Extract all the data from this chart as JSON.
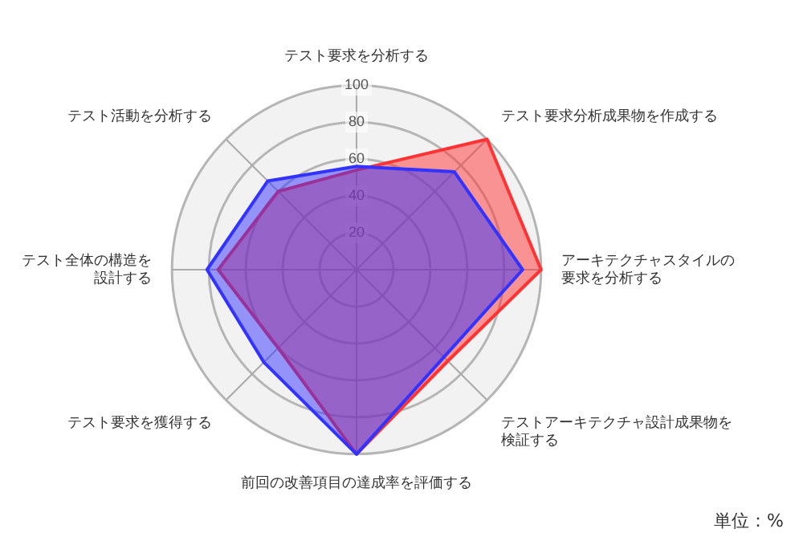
{
  "chart_data": {
    "type": "radar",
    "categories": [
      "テスト要求を分析する",
      "テスト要求分析成果物を作成する",
      "アーキテクチャスタイルの要求を分析する",
      "テストアーキテクチャ設計成果物を検証する",
      "前回の改善項目の達成率を評価する",
      "テスト要求を獲得する",
      "テスト全体の構造を設計する",
      "テスト活動を分析する"
    ],
    "series": [
      {
        "color": "#3333ff",
        "values": [
          56,
          75,
          90,
          67,
          100,
          71,
          81,
          68
        ]
      },
      {
        "color": "#ff3333",
        "values": [
          54,
          100,
          100,
          70,
          100,
          60,
          75,
          60
        ]
      }
    ],
    "ylim": [
      0,
      100
    ],
    "yticks": [
      20,
      40,
      60,
      80,
      100
    ],
    "grid": true,
    "legend": false,
    "marker": "none",
    "annotations": [
      "単位：%"
    ]
  }
}
